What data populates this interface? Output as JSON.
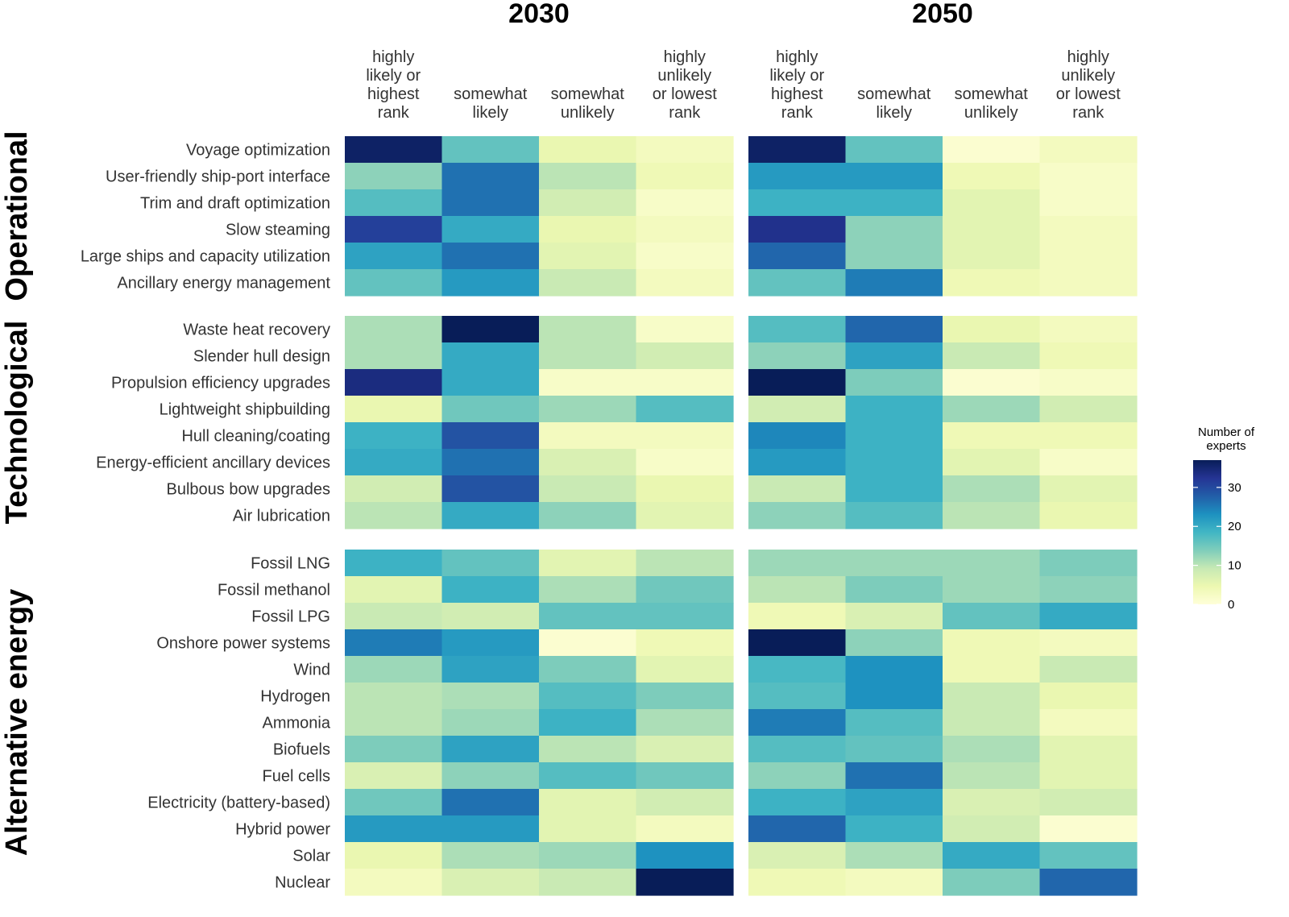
{
  "chart_data": {
    "type": "heatmap",
    "panels": [
      "2030",
      "2050"
    ],
    "columns": [
      [
        "highly",
        "likely or",
        "highest",
        "rank"
      ],
      [
        "somewhat",
        "likely"
      ],
      [
        "somewhat",
        "unlikely"
      ],
      [
        "highly",
        "unlikely",
        "or lowest",
        "rank"
      ]
    ],
    "groups": [
      {
        "name": "Operational",
        "rows": [
          {
            "label": "Voyage optimization",
            "v2030": [
              36,
              16,
              5,
              3
            ],
            "v2050": [
              36,
              16,
              1,
              3
            ]
          },
          {
            "label": "User-friendly ship-port interface",
            "v2030": [
              13,
              26,
              10,
              4
            ],
            "v2050": [
              22,
              22,
              4,
              2
            ]
          },
          {
            "label": "Trim and draft optimization",
            "v2030": [
              17,
              26,
              8,
              2
            ],
            "v2050": [
              19,
              19,
              6,
              2
            ]
          },
          {
            "label": "Slow steaming",
            "v2030": [
              31,
              20,
              5,
              3
            ],
            "v2050": [
              33,
              13,
              6,
              3
            ]
          },
          {
            "label": "Large ships and capacity utilization",
            "v2030": [
              21,
              26,
              6,
              2
            ],
            "v2050": [
              27,
              13,
              6,
              3
            ]
          },
          {
            "label": "Ancillary energy management",
            "v2030": [
              16,
              22,
              9,
              3
            ],
            "v2050": [
              16,
              25,
              4,
              3
            ]
          }
        ]
      },
      {
        "name": "Technological",
        "rows": [
          {
            "label": "Waste heat recovery",
            "v2030": [
              11,
              37,
              10,
              2
            ],
            "v2050": [
              17,
              27,
              5,
              3
            ]
          },
          {
            "label": "Slender hull design",
            "v2030": [
              11,
              20,
              10,
              8
            ],
            "v2050": [
              13,
              21,
              9,
              4
            ]
          },
          {
            "label": "Propulsion efficiency upgrades",
            "v2030": [
              34,
              20,
              2,
              2
            ],
            "v2050": [
              37,
              14,
              1,
              2
            ]
          },
          {
            "label": "Lightweight shipbuilding",
            "v2030": [
              5,
              15,
              12,
              17
            ],
            "v2050": [
              8,
              19,
              12,
              8
            ]
          },
          {
            "label": "Hull cleaning/coating",
            "v2030": [
              19,
              29,
              3,
              3
            ],
            "v2050": [
              24,
              19,
              4,
              4
            ]
          },
          {
            "label": "Energy-efficient ancillary devices",
            "v2030": [
              20,
              26,
              7,
              2
            ],
            "v2050": [
              22,
              19,
              6,
              2
            ]
          },
          {
            "label": "Bulbous bow upgrades",
            "v2030": [
              8,
              29,
              9,
              5
            ],
            "v2050": [
              9,
              19,
              11,
              6
            ]
          },
          {
            "label": "Air lubrication",
            "v2030": [
              10,
              20,
              13,
              6
            ],
            "v2050": [
              13,
              17,
              10,
              5
            ]
          }
        ]
      },
      {
        "name": "Alternative energy",
        "rows": [
          {
            "label": "Fossil LNG",
            "v2030": [
              19,
              16,
              6,
              10
            ],
            "v2050": [
              12,
              12,
              12,
              14
            ]
          },
          {
            "label": "Fossil methanol",
            "v2030": [
              6,
              19,
              11,
              15
            ],
            "v2050": [
              10,
              14,
              12,
              13
            ]
          },
          {
            "label": "Fossil LPG",
            "v2030": [
              9,
              8,
              16,
              16
            ],
            "v2050": [
              4,
              7,
              16,
              20
            ]
          },
          {
            "label": "Onshore power systems",
            "v2030": [
              25,
              22,
              1,
              4
            ],
            "v2050": [
              37,
              13,
              4,
              3
            ]
          },
          {
            "label": "Wind",
            "v2030": [
              12,
              21,
              14,
              6
            ],
            "v2050": [
              18,
              23,
              4,
              9
            ]
          },
          {
            "label": "Hydrogen",
            "v2030": [
              10,
              11,
              17,
              14
            ],
            "v2050": [
              17,
              23,
              9,
              5
            ]
          },
          {
            "label": "Ammonia",
            "v2030": [
              10,
              12,
              19,
              11
            ],
            "v2050": [
              25,
              17,
              9,
              3
            ]
          },
          {
            "label": "Biofuels",
            "v2030": [
              14,
              21,
              10,
              7
            ],
            "v2050": [
              17,
              16,
              11,
              6
            ]
          },
          {
            "label": "Fuel cells",
            "v2030": [
              7,
              13,
              17,
              15
            ],
            "v2050": [
              13,
              26,
              10,
              6
            ]
          },
          {
            "label": "Electricity (battery-based)",
            "v2030": [
              15,
              26,
              6,
              8
            ],
            "v2050": [
              19,
              21,
              7,
              8
            ]
          },
          {
            "label": "Hybrid power",
            "v2030": [
              22,
              22,
              6,
              3
            ],
            "v2050": [
              27,
              19,
              8,
              1
            ]
          },
          {
            "label": "Solar",
            "v2030": [
              5,
              11,
              12,
              23
            ],
            "v2050": [
              7,
              11,
              20,
              16
            ]
          },
          {
            "label": "Nuclear",
            "v2030": [
              3,
              7,
              9,
              37
            ],
            "v2050": [
              4,
              3,
              14,
              27
            ]
          }
        ]
      }
    ],
    "legend": {
      "title": [
        "Number of",
        "experts"
      ],
      "ticks": [
        0,
        10,
        20,
        30
      ],
      "range": [
        0,
        37
      ],
      "placement": "right"
    },
    "color_scale": [
      "#ffffd9",
      "#edf8b1",
      "#c7e9b4",
      "#7fcdbb",
      "#41b6c4",
      "#1d91c0",
      "#225ea8",
      "#253494",
      "#081d58"
    ]
  }
}
